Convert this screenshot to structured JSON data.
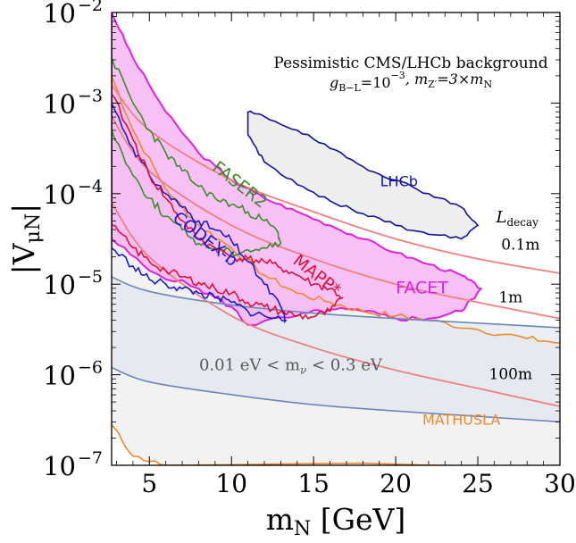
{
  "chart_data": {
    "type": "area",
    "xlabel": "m",
    "xlabel_sub": "N",
    "xlabel_unit": "[GeV]",
    "ylabel": "|V",
    "ylabel_sub": "μN",
    "ylabel_close": "|",
    "xlim": [
      2.7,
      30
    ],
    "ylim_log10": [
      -7,
      -2
    ],
    "yscale": "log",
    "xticks": [
      5,
      10,
      15,
      20,
      25,
      30
    ],
    "xtick_labels": [
      "5",
      "10",
      "15",
      "20",
      "25",
      "30"
    ],
    "yticks_log10": [
      -7,
      -6,
      -5,
      -4,
      -3,
      -2
    ],
    "ytick_mantissa": "10",
    "ytick_exponents": [
      "−7",
      "−6",
      "−5",
      "−4",
      "−3",
      "−2"
    ],
    "annotation_title": "Pessimistic CMS/LHCb background",
    "annotation_params": {
      "g": "g",
      "g_sub": "B−L",
      "g_val": "=10",
      "g_exp": "−3",
      "mz": ", m",
      "mz_sub": "Z′",
      "mz_val": "=3×m",
      "mz_sub2": "N"
    },
    "decay_header": {
      "main": "L",
      "sub": "decay"
    },
    "decay_lines": [
      {
        "label": "0.1m",
        "points": [
          [
            2.7,
            -2.8
          ],
          [
            5,
            -3.3
          ],
          [
            10,
            -3.85
          ],
          [
            15,
            -4.2
          ],
          [
            20,
            -4.5
          ],
          [
            25,
            -4.72
          ],
          [
            30,
            -4.88
          ]
        ]
      },
      {
        "label": "1m",
        "points": [
          [
            2.7,
            -3.15
          ],
          [
            5,
            -3.75
          ],
          [
            10,
            -4.35
          ],
          [
            15,
            -4.72
          ],
          [
            20,
            -5.0
          ],
          [
            25,
            -5.2
          ],
          [
            30,
            -5.38
          ]
        ]
      },
      {
        "label": "100m",
        "points": [
          [
            2.7,
            -4.1
          ],
          [
            5,
            -4.7
          ],
          [
            10,
            -5.35
          ],
          [
            15,
            -5.7
          ],
          [
            20,
            -5.95
          ],
          [
            25,
            -6.15
          ],
          [
            30,
            -6.35
          ]
        ]
      }
    ],
    "seesaw_band": {
      "label": "0.01 eV < m",
      "label_sub": "ν",
      "label_end": " < 0.3 eV",
      "upper": [
        [
          2.7,
          -4.92
        ],
        [
          5,
          -5.08
        ],
        [
          10,
          -5.23
        ],
        [
          15,
          -5.32
        ],
        [
          20,
          -5.38
        ],
        [
          25,
          -5.43
        ],
        [
          30,
          -5.48
        ]
      ],
      "lower": [
        [
          2.7,
          -5.92
        ],
        [
          5,
          -6.08
        ],
        [
          10,
          -6.22
        ],
        [
          15,
          -6.33
        ],
        [
          20,
          -6.4
        ],
        [
          25,
          -6.46
        ],
        [
          30,
          -6.52
        ]
      ],
      "color": "#6b87b8"
    },
    "series": [
      {
        "name": "MATHUSLA",
        "color": "#ee8a2b",
        "fill": "#f2f2f2",
        "upper": [
          [
            2.7,
            -2.7
          ],
          [
            4,
            -3.3
          ],
          [
            6,
            -3.95
          ],
          [
            8,
            -4.35
          ],
          [
            10,
            -4.6
          ],
          [
            12,
            -4.9
          ],
          [
            14,
            -5.1
          ],
          [
            16,
            -5.2
          ],
          [
            18,
            -5.3
          ],
          [
            20,
            -5.35
          ],
          [
            22,
            -5.4
          ],
          [
            25,
            -5.5
          ],
          [
            28,
            -5.6
          ],
          [
            30,
            -5.65
          ]
        ],
        "lower": [
          [
            2.7,
            -6.55
          ],
          [
            4,
            -6.9
          ],
          [
            6,
            -7
          ],
          [
            30,
            -7
          ]
        ]
      },
      {
        "name": "FACET",
        "color": "#e020e0",
        "fill": "#f7b6f3",
        "upper": [
          [
            2.7,
            -2.0
          ],
          [
            4,
            -2.5
          ],
          [
            6,
            -3.1
          ],
          [
            8,
            -3.55
          ],
          [
            10,
            -3.85
          ],
          [
            12,
            -4.05
          ],
          [
            14,
            -4.2
          ],
          [
            16,
            -4.35
          ],
          [
            18,
            -4.5
          ],
          [
            20,
            -4.65
          ],
          [
            22,
            -4.78
          ],
          [
            24,
            -4.9
          ],
          [
            25.2,
            -5.05
          ]
        ],
        "lower": [
          [
            2.7,
            -4.5
          ],
          [
            5,
            -4.85
          ],
          [
            8,
            -5.05
          ],
          [
            10,
            -5.25
          ],
          [
            11,
            -5.45
          ],
          [
            14,
            -5.35
          ],
          [
            16,
            -5.28
          ],
          [
            18,
            -5.3
          ],
          [
            20,
            -5.38
          ],
          [
            22,
            -5.38
          ],
          [
            24,
            -5.3
          ],
          [
            25.2,
            -5.05
          ]
        ]
      },
      {
        "name": "FASER2",
        "color": "#3f8a2a",
        "upper": [
          [
            2.7,
            -2.5
          ],
          [
            4,
            -3.0
          ],
          [
            5,
            -3.3
          ],
          [
            6,
            -3.55
          ],
          [
            7,
            -3.75
          ],
          [
            8,
            -3.92
          ],
          [
            9,
            -4.05
          ],
          [
            10,
            -4.12
          ],
          [
            11,
            -4.2
          ],
          [
            12,
            -4.3
          ],
          [
            12.8,
            -4.42
          ],
          [
            13,
            -4.55
          ]
        ],
        "lower": [
          [
            2.7,
            -3.3
          ],
          [
            4,
            -3.8
          ],
          [
            5,
            -4.05
          ],
          [
            6,
            -4.25
          ],
          [
            7,
            -4.4
          ],
          [
            8,
            -4.55
          ],
          [
            9,
            -4.6
          ],
          [
            10,
            -4.65
          ],
          [
            11,
            -4.62
          ],
          [
            12,
            -4.6
          ],
          [
            13,
            -4.55
          ]
        ]
      },
      {
        "name": "CODEX-b",
        "color": "#1c1cc8",
        "upper": [
          [
            2.7,
            -3.0
          ],
          [
            4,
            -3.5
          ],
          [
            5,
            -3.8
          ],
          [
            6,
            -4.0
          ],
          [
            7,
            -4.15
          ],
          [
            8,
            -4.3
          ],
          [
            9,
            -4.4
          ],
          [
            10,
            -4.52
          ],
          [
            11,
            -4.75
          ],
          [
            12,
            -5.0
          ],
          [
            13,
            -5.25
          ],
          [
            13.3,
            -5.4
          ]
        ],
        "lower": [
          [
            2.7,
            -4.6
          ],
          [
            4,
            -4.8
          ],
          [
            5,
            -4.95
          ],
          [
            6,
            -5.0
          ],
          [
            7,
            -5.05
          ],
          [
            8,
            -5.1
          ],
          [
            9,
            -5.15
          ],
          [
            10,
            -5.2
          ],
          [
            11,
            -5.3
          ],
          [
            12,
            -5.35
          ],
          [
            13.3,
            -5.4
          ]
        ]
      },
      {
        "name": "MAPP*",
        "color": "#e0103c",
        "upper": [
          [
            2.7,
            -2.9
          ],
          [
            4,
            -3.4
          ],
          [
            5,
            -3.8
          ],
          [
            6,
            -4.05
          ],
          [
            7,
            -4.3
          ],
          [
            8,
            -4.5
          ],
          [
            9,
            -4.6
          ],
          [
            10,
            -4.7
          ],
          [
            11,
            -4.72
          ],
          [
            12,
            -4.75
          ],
          [
            13,
            -4.82
          ],
          [
            14,
            -4.9
          ],
          [
            15,
            -5.0
          ],
          [
            16,
            -5.05
          ],
          [
            16.8,
            -5.15
          ]
        ],
        "lower": [
          [
            2.7,
            -4.35
          ],
          [
            4,
            -4.6
          ],
          [
            5,
            -4.75
          ],
          [
            6,
            -4.85
          ],
          [
            7,
            -4.92
          ],
          [
            8,
            -4.98
          ],
          [
            9,
            -5.05
          ],
          [
            10,
            -5.1
          ],
          [
            11,
            -5.2
          ],
          [
            12,
            -5.25
          ],
          [
            13,
            -5.3
          ],
          [
            14,
            -5.35
          ],
          [
            15,
            -5.36
          ],
          [
            16,
            -5.3
          ],
          [
            16.8,
            -5.15
          ]
        ]
      },
      {
        "name": "LHCb",
        "color": "#11119a",
        "fill": "#eeeeee",
        "closed": [
          [
            11,
            -3.1
          ],
          [
            12,
            -3.15
          ],
          [
            14,
            -3.3
          ],
          [
            16,
            -3.5
          ],
          [
            18,
            -3.7
          ],
          [
            20,
            -3.85
          ],
          [
            22,
            -4.0
          ],
          [
            24,
            -4.15
          ],
          [
            25,
            -4.35
          ],
          [
            24,
            -4.5
          ],
          [
            22,
            -4.45
          ],
          [
            20,
            -4.35
          ],
          [
            18,
            -4.22
          ],
          [
            16,
            -4.08
          ],
          [
            14,
            -3.9
          ],
          [
            12,
            -3.65
          ],
          [
            11,
            -3.35
          ]
        ]
      }
    ],
    "series_labels": {
      "MATHUSLA": {
        "text": "MATHUSLA",
        "at": [
          24,
          -6.55
        ],
        "color": "#ee8a2b",
        "rotate": 0
      },
      "FACET": {
        "text": "FACET",
        "at": [
          21.6,
          -5.1
        ],
        "color": "#e020e0",
        "rotate": 0
      },
      "FASER2": {
        "text": "FASER2",
        "at": [
          10.3,
          -3.95
        ],
        "color": "#3f8a2a",
        "rotate": 38
      },
      "CODEX-b": {
        "text": "CODEX-b",
        "at": [
          8.2,
          -4.55
        ],
        "color": "#1c1cc8",
        "rotate": 38
      },
      "MAPP*": {
        "text": "MAPP*",
        "at": [
          15.0,
          -4.95
        ],
        "color": "#e0103c",
        "rotate": 38
      },
      "LHCb": {
        "text": "LHCb",
        "at": [
          20.2,
          -3.92
        ],
        "color": "#11119a",
        "rotate": 0
      }
    },
    "decay_label_positions": {
      "0.1m": [
        27.6,
        -4.62
      ],
      "1m": [
        27.0,
        -5.2
      ],
      "100m": [
        27.0,
        -6.05
      ]
    },
    "decay_header_at": [
      27.4,
      -4.32
    ],
    "band_label_at": [
      13.6,
      -5.95
    ],
    "grid": false,
    "legend": "none"
  }
}
